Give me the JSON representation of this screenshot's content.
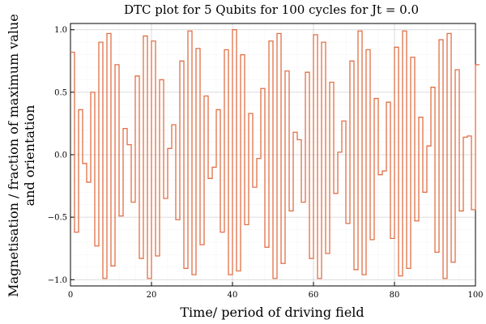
{
  "chart_data": {
    "type": "line",
    "step": "post",
    "title": "DTC plot for 5 Qubits for 100 cycles for Jt = 0.0",
    "xlabel": "Time/ period of driving field",
    "ylabel_line1": "Magnetisation / fraction of maximum value",
    "ylabel_line2": "and orientation",
    "xlim": [
      0,
      100
    ],
    "ylim": [
      -1.05,
      1.05
    ],
    "xticks": [
      0,
      20,
      40,
      60,
      80,
      100
    ],
    "xtick_labels": [
      "0",
      "20",
      "40",
      "60",
      "80",
      "100"
    ],
    "yticks": [
      -1.0,
      -0.5,
      0.0,
      0.5,
      1.0
    ],
    "ytick_labels": [
      "−1.0",
      "−0.5",
      "0.0",
      "0.5",
      "1.0"
    ],
    "grid": true,
    "legend": false,
    "line_color": "#e26f46",
    "series": [
      {
        "x": [
          0,
          1,
          2,
          3,
          4,
          5,
          6,
          7,
          8,
          9,
          10,
          11,
          12,
          13,
          14,
          15,
          16,
          17,
          18,
          19,
          20,
          21,
          22,
          23,
          24,
          25,
          26,
          27,
          28,
          29,
          30,
          31,
          32,
          33,
          34,
          35,
          36,
          37,
          38,
          39,
          40,
          41,
          42,
          43,
          44,
          45,
          46,
          47,
          48,
          49,
          50,
          51,
          52,
          53,
          54,
          55,
          56,
          57,
          58,
          59,
          60,
          61,
          62,
          63,
          64,
          65,
          66,
          67,
          68,
          69,
          70,
          71,
          72,
          73,
          74,
          75,
          76,
          77,
          78,
          79,
          80,
          81,
          82,
          83,
          84,
          85,
          86,
          87,
          88,
          89,
          90,
          91,
          92,
          93,
          94,
          95,
          96,
          97,
          98,
          99,
          100
        ],
        "values": [
          0.82,
          -0.62,
          0.36,
          -0.07,
          -0.22,
          0.5,
          -0.73,
          0.9,
          -0.99,
          0.97,
          -0.89,
          0.72,
          -0.49,
          0.21,
          0.08,
          -0.38,
          0.63,
          -0.83,
          0.95,
          -0.99,
          0.91,
          -0.81,
          0.6,
          -0.35,
          0.05,
          0.24,
          -0.52,
          0.75,
          -0.91,
          0.99,
          -0.96,
          0.85,
          -0.72,
          0.47,
          -0.19,
          -0.1,
          0.36,
          -0.62,
          0.84,
          -0.96,
          1.0,
          -0.93,
          0.8,
          -0.56,
          0.33,
          -0.26,
          -0.03,
          0.53,
          -0.74,
          0.91,
          -0.99,
          0.97,
          -0.87,
          0.67,
          -0.45,
          0.18,
          0.12,
          -0.38,
          0.66,
          -0.83,
          0.96,
          -0.99,
          0.9,
          -0.79,
          0.58,
          -0.31,
          0.02,
          0.27,
          -0.55,
          0.75,
          -0.92,
          0.99,
          -0.96,
          0.84,
          -0.68,
          0.45,
          -0.16,
          -0.13,
          0.42,
          -0.67,
          0.86,
          -0.97,
          0.99,
          -0.91,
          0.78,
          -0.53,
          0.3,
          -0.3,
          0.07,
          0.54,
          -0.78,
          0.92,
          -0.99,
          0.97,
          -0.86,
          0.68,
          -0.45,
          0.14,
          0.15,
          -0.44,
          0.72
        ]
      }
    ]
  }
}
